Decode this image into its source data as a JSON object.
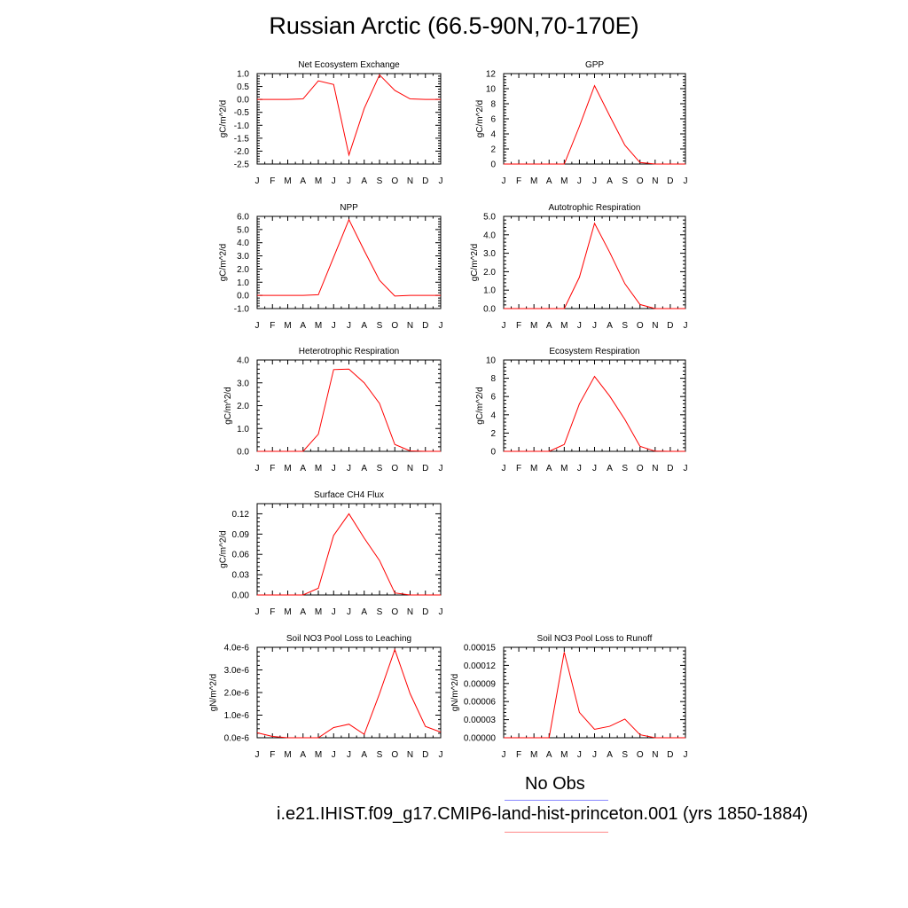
{
  "figure": {
    "title": "Russian Arctic (66.5-90N,70-170E)"
  },
  "legend": {
    "obs_label": "No Obs",
    "obs_color": "#8888ff",
    "model_label": "i.e21.IHIST.f09_g17.CMIP6-land-hist-princeton.001 (yrs 1850-1884)",
    "model_color": "#ff0000"
  },
  "chart_data": [
    {
      "type": "line",
      "title": "Net Ecosystem Exchange",
      "ylabel": "gC/m^2/d",
      "categories": [
        "J",
        "F",
        "M",
        "A",
        "M",
        "J",
        "J",
        "A",
        "S",
        "O",
        "N",
        "D",
        "J"
      ],
      "ylim": [
        -2.5,
        1.0
      ],
      "yticks": [
        1.0,
        0.5,
        0.0,
        -0.5,
        -1.0,
        -1.5,
        -2.0,
        -2.5
      ],
      "ytick_labels": [
        "1.0",
        "0.5",
        "0.0",
        "-0.5",
        "-1.0",
        "-1.5",
        "-2.0",
        "-2.5"
      ],
      "series": [
        {
          "values": [
            0.0,
            0.0,
            0.0,
            0.02,
            0.72,
            0.58,
            -2.15,
            -0.35,
            0.95,
            0.35,
            0.02,
            0.0,
            0.0
          ]
        }
      ]
    },
    {
      "type": "line",
      "title": "GPP",
      "ylabel": "gC/m^2/d",
      "categories": [
        "J",
        "F",
        "M",
        "A",
        "M",
        "J",
        "J",
        "A",
        "S",
        "O",
        "N",
        "D",
        "J"
      ],
      "ylim": [
        0,
        12
      ],
      "yticks": [
        0,
        2,
        4,
        6,
        8,
        10,
        12
      ],
      "ytick_labels": [
        "0",
        "2",
        "4",
        "6",
        "8",
        "10",
        "12"
      ],
      "series": [
        {
          "values": [
            0.0,
            0.0,
            0.0,
            0.0,
            0.0,
            5.0,
            10.4,
            6.4,
            2.5,
            0.2,
            0.0,
            0.0,
            0.0
          ]
        }
      ]
    },
    {
      "type": "line",
      "title": "NPP",
      "ylabel": "gC/m^2/d",
      "categories": [
        "J",
        "F",
        "M",
        "A",
        "M",
        "J",
        "J",
        "A",
        "S",
        "O",
        "N",
        "D",
        "J"
      ],
      "ylim": [
        -1.0,
        6.0
      ],
      "yticks": [
        6.0,
        5.0,
        4.0,
        3.0,
        2.0,
        1.0,
        0.0,
        -1.0
      ],
      "ytick_labels": [
        "6.0",
        "5.0",
        "4.0",
        "3.0",
        "2.0",
        "1.0",
        "0.0",
        "-1.0"
      ],
      "series": [
        {
          "values": [
            0.0,
            0.0,
            0.0,
            0.0,
            0.05,
            2.9,
            5.75,
            3.4,
            1.15,
            -0.05,
            0.0,
            0.0,
            0.0
          ]
        }
      ]
    },
    {
      "type": "line",
      "title": "Autotrophic Respiration",
      "ylabel": "gC/m^2/d",
      "categories": [
        "J",
        "F",
        "M",
        "A",
        "M",
        "J",
        "J",
        "A",
        "S",
        "O",
        "N",
        "D",
        "J"
      ],
      "ylim": [
        0,
        5.0
      ],
      "yticks": [
        0.0,
        1.0,
        2.0,
        3.0,
        4.0,
        5.0
      ],
      "ytick_labels": [
        "0.0",
        "1.0",
        "2.0",
        "3.0",
        "4.0",
        "5.0"
      ],
      "series": [
        {
          "values": [
            0.0,
            0.0,
            0.0,
            0.0,
            0.0,
            1.7,
            4.62,
            3.05,
            1.35,
            0.22,
            0.0,
            0.0,
            0.0
          ]
        }
      ]
    },
    {
      "type": "line",
      "title": "Heterotrophic Respiration",
      "ylabel": "gC/m^2/d",
      "categories": [
        "J",
        "F",
        "M",
        "A",
        "M",
        "J",
        "J",
        "A",
        "S",
        "O",
        "N",
        "D",
        "J"
      ],
      "ylim": [
        0,
        4.0
      ],
      "yticks": [
        0.0,
        1.0,
        2.0,
        3.0,
        4.0
      ],
      "ytick_labels": [
        "0.0",
        "1.0",
        "2.0",
        "3.0",
        "4.0"
      ],
      "series": [
        {
          "values": [
            0.0,
            0.0,
            0.0,
            0.0,
            0.75,
            3.58,
            3.6,
            3.0,
            2.1,
            0.3,
            0.02,
            0.0,
            0.0
          ]
        }
      ]
    },
    {
      "type": "line",
      "title": "Ecosystem Respiration",
      "ylabel": "gC/m^2/d",
      "categories": [
        "J",
        "F",
        "M",
        "A",
        "M",
        "J",
        "J",
        "A",
        "S",
        "O",
        "N",
        "D",
        "J"
      ],
      "ylim": [
        0,
        10
      ],
      "yticks": [
        0,
        2,
        4,
        6,
        8,
        10
      ],
      "ytick_labels": [
        "0",
        "2",
        "4",
        "6",
        "8",
        "10"
      ],
      "series": [
        {
          "values": [
            0.0,
            0.0,
            0.0,
            0.0,
            0.75,
            5.2,
            8.2,
            6.05,
            3.5,
            0.55,
            0.02,
            0.0,
            0.0
          ]
        }
      ]
    },
    {
      "type": "line",
      "title": "Surface CH4 Flux",
      "ylabel": "gC/m^2/d",
      "categories": [
        "J",
        "F",
        "M",
        "A",
        "M",
        "J",
        "J",
        "A",
        "S",
        "O",
        "N",
        "D",
        "J"
      ],
      "ylim": [
        0,
        0.135
      ],
      "yticks": [
        0.0,
        0.03,
        0.06,
        0.09,
        0.12
      ],
      "ytick_labels": [
        "0.00",
        "0.03",
        "0.06",
        "0.09",
        "0.12"
      ],
      "series": [
        {
          "values": [
            0.0,
            0.0,
            0.0,
            0.0,
            0.01,
            0.088,
            0.12,
            0.084,
            0.051,
            0.003,
            0.0,
            0.0,
            0.0
          ]
        }
      ]
    },
    {
      "type": "line",
      "title": "Soil NO3 Pool Loss to Leaching",
      "ylabel": "gN/m^2/d",
      "categories": [
        "J",
        "F",
        "M",
        "A",
        "M",
        "J",
        "J",
        "A",
        "S",
        "O",
        "N",
        "D",
        "J"
      ],
      "ylim": [
        0,
        4e-06
      ],
      "yticks": [
        0,
        1e-06,
        2e-06,
        3e-06,
        4e-06
      ],
      "ytick_labels": [
        "0.0e-6",
        "1.0e-6",
        "2.0e-6",
        "3.0e-6",
        "4.0e-6"
      ],
      "series": [
        {
          "values": [
            2.2e-07,
            6e-08,
            0.0,
            0.0,
            0.0,
            4.5e-07,
            6e-07,
            1.5e-07,
            1.95e-06,
            3.9e-06,
            1.95e-06,
            5e-07,
            2.5e-07
          ]
        }
      ]
    },
    {
      "type": "line",
      "title": "Soil NO3 Pool Loss to Runoff",
      "ylabel": "gN/m^2/d",
      "categories": [
        "J",
        "F",
        "M",
        "A",
        "M",
        "J",
        "J",
        "A",
        "S",
        "O",
        "N",
        "D",
        "J"
      ],
      "ylim": [
        0,
        0.00015
      ],
      "yticks": [
        0,
        3e-05,
        6e-05,
        9e-05,
        0.00012,
        0.00015
      ],
      "ytick_labels": [
        "0.00000",
        "0.00003",
        "0.00006",
        "0.00009",
        "0.00012",
        "0.00015"
      ],
      "series": [
        {
          "values": [
            0.0,
            0.0,
            0.0,
            0.0,
            0.000142,
            4.2e-05,
            1.4e-05,
            1.9e-05,
            3.1e-05,
            5e-06,
            0.0,
            0.0,
            0.0
          ]
        }
      ]
    }
  ]
}
